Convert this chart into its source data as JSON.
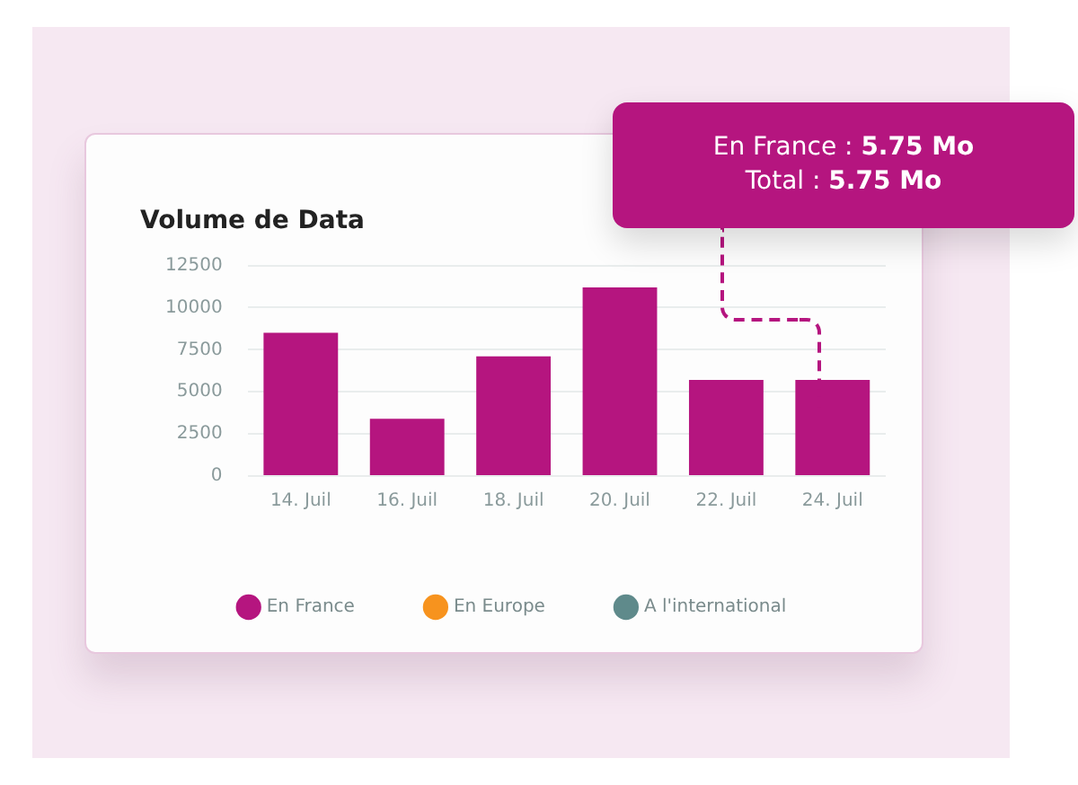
{
  "chart_data": {
    "type": "bar",
    "title": "Volume de Data",
    "categories": [
      "14. Juil",
      "16. Juil",
      "18. Juil",
      "20. Juil",
      "22. Juil",
      "24. Juil"
    ],
    "series": [
      {
        "name": "En France",
        "color": "#b5157f",
        "values": [
          8500,
          3400,
          7100,
          11200,
          5700,
          5700
        ]
      },
      {
        "name": "En Europe",
        "color": "#f7931e",
        "values": [
          null,
          null,
          null,
          null,
          null,
          null
        ]
      },
      {
        "name": "A l'international",
        "color": "#5f8a8b",
        "values": [
          null,
          null,
          null,
          null,
          null,
          null
        ]
      }
    ],
    "stacked": true,
    "ylim": [
      0,
      12500
    ],
    "yticks": [
      0,
      2500,
      5000,
      7500,
      10000,
      12500
    ],
    "grid": "y",
    "legend": "bottom",
    "annotations": [
      "En France : 5.75 Mo",
      "Total : 5.75 Mo"
    ]
  }
}
